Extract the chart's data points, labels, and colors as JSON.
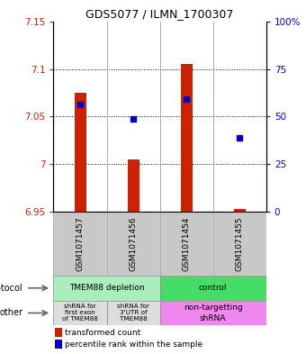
{
  "title": "GDS5077 / ILMN_1700307",
  "samples": [
    "GSM1071457",
    "GSM1071456",
    "GSM1071454",
    "GSM1071455"
  ],
  "bar_tops": [
    7.075,
    7.005,
    7.105,
    6.953
  ],
  "bar_bottom": 6.95,
  "blue_values": [
    7.063,
    7.048,
    7.068,
    7.028
  ],
  "ylim_left": [
    6.95,
    7.15
  ],
  "ylim_right": [
    0,
    100
  ],
  "yticks_left": [
    6.95,
    7.0,
    7.05,
    7.1,
    7.15
  ],
  "yticks_left_labels": [
    "6.95",
    "7",
    "7.05",
    "7.1",
    "7.15"
  ],
  "yticks_right": [
    0,
    25,
    50,
    75,
    100
  ],
  "yticks_right_labels": [
    "0",
    "25",
    "50",
    "75",
    "100%"
  ],
  "hline_values": [
    7.0,
    7.05,
    7.1
  ],
  "bar_color": "#CC2200",
  "dot_color": "#0000CC",
  "axis_color_left": "#CC2200",
  "axis_color_right": "#0000CC",
  "sample_bg_color": "#C8C8C8",
  "protocol_light_green": "#AAEEBB",
  "protocol_dark_green": "#44DD66",
  "other_gray": "#DDDDDD",
  "other_purple": "#EE88EE",
  "protocol_label1": "TMEM88 depletion",
  "protocol_label2": "control",
  "other_label1": "shRNA for\nfirst exon\nof TMEM88",
  "other_label2": "shRNA for\n3'UTR of\nTMEM88",
  "other_label3": "non-targetting\nshRNA",
  "legend_label1": "transformed count",
  "legend_label2": "percentile rank within the sample"
}
